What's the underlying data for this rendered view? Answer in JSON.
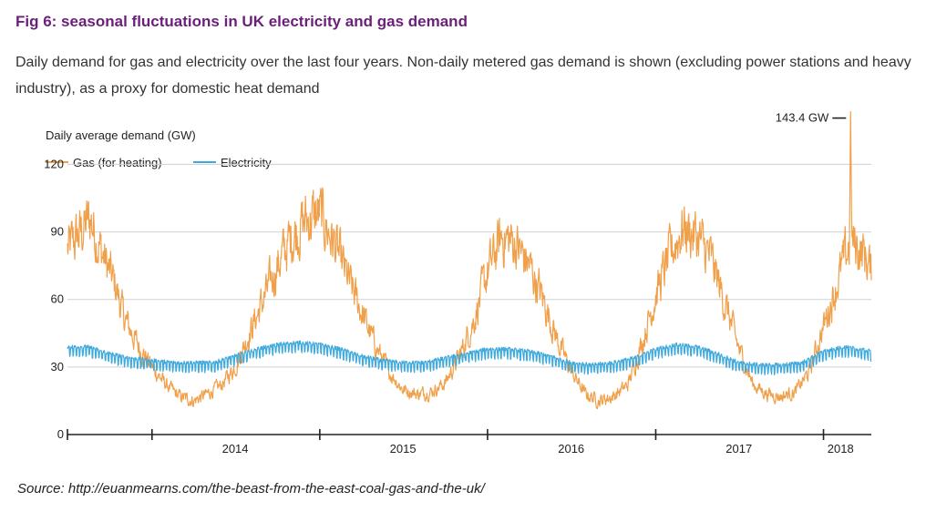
{
  "header": {
    "title": "Fig 6: seasonal fluctuations in UK electricity and gas demand",
    "subtitle": "Daily demand for gas and electricity over the last four years. Non-daily metered gas demand is shown (excluding power stations and heavy industry), as a proxy for domestic heat demand"
  },
  "footer": {
    "source": "Source: http://euanmearns.com/the-beast-from-the-east-coal-gas-and-the-uk/"
  },
  "colors": {
    "gas": "#f0a04a",
    "electricity": "#3fa9dc",
    "grid": "#d0d0d0",
    "axis": "#222222",
    "title": "#6b1f7a"
  },
  "chart_data": {
    "type": "line",
    "ylabel": "Daily average demand (GW)",
    "ylim": [
      0,
      140
    ],
    "yticks": [
      0,
      30,
      60,
      90,
      120
    ],
    "grid": "horizontal",
    "legend_position": "top-left",
    "x_start": "2013-07-01",
    "x_end": "2018-04-15",
    "xtick_boundaries": [
      "2014-01-01",
      "2015-01-01",
      "2016-01-01",
      "2017-01-01",
      "2018-01-01"
    ],
    "xtick_labels": [
      {
        "label": "2014",
        "date": "2014-07-01"
      },
      {
        "label": "2015",
        "date": "2015-07-01"
      },
      {
        "label": "2016",
        "date": "2016-07-01"
      },
      {
        "label": "2017",
        "date": "2017-07-01"
      },
      {
        "label": "2018",
        "date": "2018-02-07"
      }
    ],
    "annotation": {
      "text": "143.4 GW",
      "value": 143.4,
      "date": "2018-03-01"
    },
    "series": [
      {
        "name": "Gas (for heating)",
        "color": "#f0a04a",
        "points": [
          [
            "2013-07-01",
            82
          ],
          [
            "2013-08-01",
            90
          ],
          [
            "2013-08-20",
            96
          ],
          [
            "2013-09-15",
            80
          ],
          [
            "2013-10-15",
            65
          ],
          [
            "2013-11-01",
            52
          ],
          [
            "2013-12-01",
            40
          ],
          [
            "2014-01-01",
            30
          ],
          [
            "2014-02-01",
            22
          ],
          [
            "2014-03-01",
            17
          ],
          [
            "2014-04-01",
            15
          ],
          [
            "2014-05-01",
            18
          ],
          [
            "2014-06-01",
            22
          ],
          [
            "2014-07-01",
            30
          ],
          [
            "2014-08-01",
            45
          ],
          [
            "2014-09-01",
            60
          ],
          [
            "2014-10-01",
            75
          ],
          [
            "2014-11-01",
            88
          ],
          [
            "2014-12-01",
            95
          ],
          [
            "2015-01-01",
            98
          ],
          [
            "2015-02-01",
            85
          ],
          [
            "2015-03-01",
            70
          ],
          [
            "2015-04-01",
            55
          ],
          [
            "2015-05-01",
            40
          ],
          [
            "2015-06-01",
            28
          ],
          [
            "2015-07-01",
            20
          ],
          [
            "2015-08-01",
            18
          ],
          [
            "2015-09-01",
            19
          ],
          [
            "2015-10-01",
            23
          ],
          [
            "2015-11-01",
            35
          ],
          [
            "2015-12-01",
            50
          ],
          [
            "2016-01-01",
            72
          ],
          [
            "2016-02-01",
            88
          ],
          [
            "2016-03-01",
            85
          ],
          [
            "2016-04-01",
            75
          ],
          [
            "2016-05-01",
            60
          ],
          [
            "2016-06-01",
            42
          ],
          [
            "2016-07-01",
            28
          ],
          [
            "2016-08-01",
            18
          ],
          [
            "2016-09-01",
            15
          ],
          [
            "2016-10-01",
            17
          ],
          [
            "2016-11-01",
            22
          ],
          [
            "2016-12-01",
            40
          ],
          [
            "2017-01-01",
            62
          ],
          [
            "2017-02-01",
            80
          ],
          [
            "2017-03-01",
            92
          ],
          [
            "2017-04-01",
            88
          ],
          [
            "2017-05-01",
            78
          ],
          [
            "2017-06-01",
            58
          ],
          [
            "2017-07-01",
            38
          ],
          [
            "2017-08-01",
            22
          ],
          [
            "2017-09-01",
            18
          ],
          [
            "2017-10-01",
            17
          ],
          [
            "2017-11-01",
            19
          ],
          [
            "2017-12-01",
            28
          ],
          [
            "2018-01-01",
            48
          ],
          [
            "2018-02-01",
            68
          ],
          [
            "2018-03-01",
            86
          ],
          [
            "2018-04-01",
            80
          ],
          [
            "2018-04-15",
            72
          ]
        ]
      },
      {
        "name": "Electricity",
        "color": "#3fa9dc",
        "points": [
          [
            "2013-07-01",
            38
          ],
          [
            "2013-08-15",
            38
          ],
          [
            "2013-10-01",
            35
          ],
          [
            "2013-11-15",
            33
          ],
          [
            "2014-01-01",
            32
          ],
          [
            "2014-02-15",
            31
          ],
          [
            "2014-04-01",
            31
          ],
          [
            "2014-05-15",
            31
          ],
          [
            "2014-07-01",
            34
          ],
          [
            "2014-08-15",
            37
          ],
          [
            "2014-10-01",
            39
          ],
          [
            "2014-11-15",
            40
          ],
          [
            "2015-01-01",
            39
          ],
          [
            "2015-02-15",
            37
          ],
          [
            "2015-04-01",
            34
          ],
          [
            "2015-05-15",
            32
          ],
          [
            "2015-07-01",
            31
          ],
          [
            "2015-08-15",
            31
          ],
          [
            "2015-10-01",
            33
          ],
          [
            "2015-11-15",
            35
          ],
          [
            "2016-01-01",
            37
          ],
          [
            "2016-02-15",
            37
          ],
          [
            "2016-04-01",
            36
          ],
          [
            "2016-05-15",
            34
          ],
          [
            "2016-07-01",
            31
          ],
          [
            "2016-08-15",
            30
          ],
          [
            "2016-10-01",
            31
          ],
          [
            "2016-11-15",
            33
          ],
          [
            "2017-01-01",
            37
          ],
          [
            "2017-02-15",
            39
          ],
          [
            "2017-04-01",
            38
          ],
          [
            "2017-05-15",
            35
          ],
          [
            "2017-07-01",
            31
          ],
          [
            "2017-08-15",
            30
          ],
          [
            "2017-10-01",
            30
          ],
          [
            "2017-11-15",
            31
          ],
          [
            "2018-01-01",
            36
          ],
          [
            "2018-02-15",
            38
          ],
          [
            "2018-04-15",
            36
          ]
        ]
      }
    ]
  }
}
